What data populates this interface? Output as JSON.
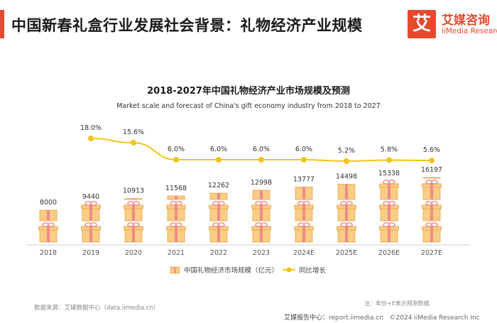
{
  "header": {
    "title": "中国新春礼盒行业发展社会背景：礼物经济产业规模",
    "logo_mark": "艾",
    "logo_cn": "艾媒咨询",
    "logo_en": "iiMedia Research"
  },
  "chart_data": {
    "type": "bar+line",
    "title": "2018-2027年中国礼物经济产业市场规模及预测",
    "subtitle": "Market scale and forecast of China's gift economy industry from 2018 to 2027",
    "categories": [
      "2018",
      "2019",
      "2020",
      "2021",
      "2022",
      "2023",
      "2024E",
      "2025E",
      "2026E",
      "2027E"
    ],
    "series": [
      {
        "name": "中国礼物经济市场规模（亿元）",
        "type": "pictorial-bar",
        "values": [
          8000,
          9440,
          10913,
          11568,
          12262,
          12998,
          13777,
          14498,
          15338,
          16197
        ],
        "labels": [
          "8000",
          "9440",
          "10913",
          "11568",
          "12262",
          "12998",
          "13777",
          "14498",
          "15338",
          "16197"
        ]
      },
      {
        "name": "同比增长",
        "type": "line",
        "values": [
          null,
          18.0,
          15.6,
          6.0,
          6.0,
          6.0,
          6.0,
          5.2,
          5.8,
          5.6
        ],
        "labels": [
          "",
          "18.0%",
          "15.6%",
          "6.0%",
          "6.0%",
          "6.0%",
          "6.0%",
          "5.2%",
          "5.8%",
          "5.6%"
        ]
      }
    ],
    "ylim_bar": [
      0,
      18000
    ],
    "ylim_line": [
      0,
      20
    ],
    "colors": {
      "gift_box": "#f9cd84",
      "gift_ribbon": "#f08a8a",
      "gift_outline": "#e8a24a",
      "line": "#f3c318",
      "axis": "#cccccc",
      "text": "#555555"
    }
  },
  "footer": {
    "source": "数据来源：艾媒数据中心（data.iimedia.cn）",
    "note": "注：年份+E表示预测数据",
    "report_label": "艾媒报告中心：",
    "report_url": "report.iimedia.cn",
    "copyright": "©2024  iiMedia Research  Inc"
  }
}
